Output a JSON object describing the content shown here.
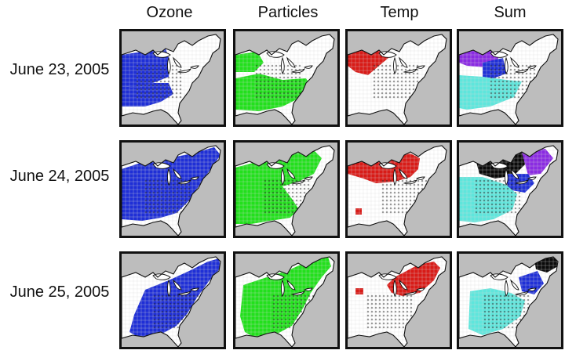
{
  "columns": [
    {
      "label": "Ozone",
      "color": "#1f2fd6"
    },
    {
      "label": "Particles",
      "color": "#22e01c"
    },
    {
      "label": "Temp",
      "color": "#d81b17"
    },
    {
      "label": "Sum",
      "color": "#000000"
    }
  ],
  "rows": [
    {
      "label": "June 23, 2005"
    },
    {
      "label": "June 24, 2005"
    },
    {
      "label": "June 25, 2005"
    }
  ],
  "colors": {
    "ocean": "#bdbdbd",
    "land": "#ffffff",
    "ozone": "#1f2fd6",
    "particles": "#22e01c",
    "temp": "#d81b17",
    "sum_cyan": "#5ee6dc",
    "sum_purple": "#8a2be2",
    "sum_black": "#0a0a0a",
    "sum_blue": "#1f2fd6"
  }
}
